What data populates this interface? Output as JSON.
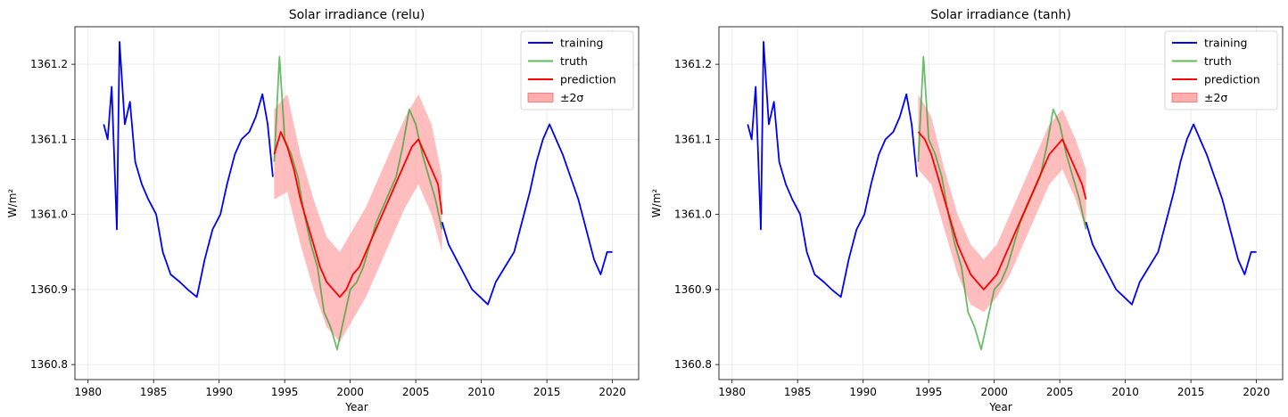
{
  "chart_data": [
    {
      "type": "line",
      "title": "Solar irradiance (relu)",
      "xlabel": "Year",
      "ylabel": "W/m²",
      "xlim": [
        1979,
        2022
      ],
      "ylim": [
        1360.78,
        1361.25
      ],
      "xticks": [
        1980,
        1985,
        1990,
        1995,
        2000,
        2005,
        2010,
        2015,
        2020
      ],
      "xtick_labels": [
        "1980",
        "1985",
        "1990",
        "1995",
        "2000",
        "2005",
        "2010",
        "2015",
        "2020"
      ],
      "yticks": [
        1360.8,
        1360.9,
        1361.0,
        1361.1,
        1361.2
      ],
      "ytick_labels": [
        "1360.8",
        "1360.9",
        "1361.0",
        "1361.1",
        "1361.2"
      ],
      "grid": true,
      "legend_position": "top-right",
      "legend": [
        "training",
        "truth",
        "prediction",
        "±2σ"
      ],
      "series": [
        {
          "name": "training",
          "color": "#0000ff",
          "x": [
            1981.2,
            1981.5,
            1981.8,
            1982.2,
            1982.4,
            1982.8,
            1983.2,
            1983.6,
            1984.1,
            1984.6,
            1985.2,
            1985.7,
            1986.3,
            1987.0,
            1987.6,
            1988.3,
            1988.9,
            1989.5,
            1990.1,
            1990.6,
            1991.2,
            1991.7,
            1992.3,
            1992.8,
            1993.3,
            1993.7,
            1994.1
          ],
          "y": [
            1361.12,
            1361.1,
            1361.17,
            1360.98,
            1361.23,
            1361.12,
            1361.15,
            1361.07,
            1361.04,
            1361.02,
            1361.0,
            1360.95,
            1360.92,
            1360.91,
            1360.9,
            1360.89,
            1360.94,
            1360.98,
            1361.0,
            1361.04,
            1361.08,
            1361.1,
            1361.11,
            1361.13,
            1361.16,
            1361.12,
            1361.05
          ]
        },
        {
          "name": "training",
          "color": "#0000ff",
          "x": [
            2007.0,
            2007.5,
            2008.1,
            2008.7,
            2009.3,
            2009.9,
            2010.5,
            2011.1,
            2011.8,
            2012.5,
            2013.1,
            2013.7,
            2014.2,
            2014.7,
            2015.2,
            2015.7,
            2016.2,
            2016.8,
            2017.4,
            2018.0,
            2018.6,
            2019.1,
            2019.6,
            2020.0
          ],
          "y": [
            1360.99,
            1360.96,
            1360.94,
            1360.92,
            1360.9,
            1360.89,
            1360.88,
            1360.91,
            1360.93,
            1360.95,
            1360.99,
            1361.03,
            1361.07,
            1361.1,
            1361.12,
            1361.1,
            1361.08,
            1361.05,
            1361.02,
            1360.98,
            1360.94,
            1360.92,
            1360.95,
            1360.95
          ]
        },
        {
          "name": "truth",
          "color": "#2ca02c",
          "x": [
            1994.2,
            1994.6,
            1995.0,
            1995.5,
            1996.0,
            1996.5,
            1997.0,
            1997.5,
            1998.0,
            1998.5,
            1999.0,
            1999.5,
            2000.0,
            2000.5,
            2001.0,
            2001.5,
            2002.0,
            2002.5,
            2003.0,
            2003.5,
            2004.0,
            2004.5,
            2005.0,
            2005.5,
            2006.0,
            2006.5,
            2007.0
          ],
          "y": [
            1361.07,
            1361.21,
            1361.1,
            1361.08,
            1361.05,
            1361.0,
            1360.96,
            1360.93,
            1360.87,
            1360.85,
            1360.82,
            1360.86,
            1360.9,
            1360.91,
            1360.93,
            1360.96,
            1360.99,
            1361.01,
            1361.03,
            1361.05,
            1361.09,
            1361.14,
            1361.12,
            1361.08,
            1361.05,
            1361.02,
            1360.98
          ]
        },
        {
          "name": "prediction",
          "color": "#ff0000",
          "x": [
            1994.2,
            1994.7,
            1995.2,
            1995.7,
            1996.2,
            1996.7,
            1997.2,
            1997.7,
            1998.2,
            1998.7,
            1999.2,
            1999.7,
            2000.2,
            2000.7,
            2001.2,
            2001.7,
            2002.2,
            2002.7,
            2003.2,
            2003.7,
            2004.2,
            2004.7,
            2005.2,
            2005.7,
            2006.2,
            2006.7,
            2007.0
          ],
          "y": [
            1361.08,
            1361.11,
            1361.09,
            1361.06,
            1361.02,
            1360.99,
            1360.96,
            1360.93,
            1360.91,
            1360.9,
            1360.89,
            1360.9,
            1360.92,
            1360.93,
            1360.95,
            1360.97,
            1360.99,
            1361.01,
            1361.03,
            1361.05,
            1361.07,
            1361.09,
            1361.1,
            1361.08,
            1361.06,
            1361.04,
            1361.0
          ]
        },
        {
          "name": "±2σ",
          "color": "#ff9999",
          "type": "band",
          "x": [
            1994.2,
            1995.2,
            1996.2,
            1997.2,
            1998.2,
            1999.2,
            2000.2,
            2001.2,
            2002.2,
            2003.2,
            2004.2,
            2005.2,
            2006.2,
            2007.0
          ],
          "lower": [
            1361.02,
            1361.03,
            1360.96,
            1360.9,
            1360.85,
            1360.83,
            1360.86,
            1360.89,
            1360.93,
            1360.97,
            1361.01,
            1361.04,
            1361.0,
            1360.95
          ],
          "upper": [
            1361.14,
            1361.16,
            1361.08,
            1361.02,
            1360.97,
            1360.95,
            1360.98,
            1361.01,
            1361.05,
            1361.09,
            1361.13,
            1361.16,
            1361.12,
            1361.05
          ]
        }
      ]
    },
    {
      "type": "line",
      "title": "Solar irradiance (tanh)",
      "xlabel": "Year",
      "ylabel": "W/m²",
      "xlim": [
        1979,
        2022
      ],
      "ylim": [
        1360.78,
        1361.25
      ],
      "xticks": [
        1980,
        1985,
        1990,
        1995,
        2000,
        2005,
        2010,
        2015,
        2020
      ],
      "xtick_labels": [
        "1980",
        "1985",
        "1990",
        "1995",
        "2000",
        "2005",
        "2010",
        "2015",
        "2020"
      ],
      "yticks": [
        1360.8,
        1360.9,
        1361.0,
        1361.1,
        1361.2
      ],
      "ytick_labels": [
        "1360.8",
        "1360.9",
        "1361.0",
        "1361.1",
        "1361.2"
      ],
      "grid": true,
      "legend_position": "top-right",
      "legend": [
        "training",
        "truth",
        "prediction",
        "±2σ"
      ],
      "series": [
        {
          "name": "training",
          "color": "#0000ff",
          "x": [
            1981.2,
            1981.5,
            1981.8,
            1982.2,
            1982.4,
            1982.8,
            1983.2,
            1983.6,
            1984.1,
            1984.6,
            1985.2,
            1985.7,
            1986.3,
            1987.0,
            1987.6,
            1988.3,
            1988.9,
            1989.5,
            1990.1,
            1990.6,
            1991.2,
            1991.7,
            1992.3,
            1992.8,
            1993.3,
            1993.7,
            1994.1
          ],
          "y": [
            1361.12,
            1361.1,
            1361.17,
            1360.98,
            1361.23,
            1361.12,
            1361.15,
            1361.07,
            1361.04,
            1361.02,
            1361.0,
            1360.95,
            1360.92,
            1360.91,
            1360.9,
            1360.89,
            1360.94,
            1360.98,
            1361.0,
            1361.04,
            1361.08,
            1361.1,
            1361.11,
            1361.13,
            1361.16,
            1361.12,
            1361.05
          ]
        },
        {
          "name": "training",
          "color": "#0000ff",
          "x": [
            2007.0,
            2007.5,
            2008.1,
            2008.7,
            2009.3,
            2009.9,
            2010.5,
            2011.1,
            2011.8,
            2012.5,
            2013.1,
            2013.7,
            2014.2,
            2014.7,
            2015.2,
            2015.7,
            2016.2,
            2016.8,
            2017.4,
            2018.0,
            2018.6,
            2019.1,
            2019.6,
            2020.0
          ],
          "y": [
            1360.99,
            1360.96,
            1360.94,
            1360.92,
            1360.9,
            1360.89,
            1360.88,
            1360.91,
            1360.93,
            1360.95,
            1360.99,
            1361.03,
            1361.07,
            1361.1,
            1361.12,
            1361.1,
            1361.08,
            1361.05,
            1361.02,
            1360.98,
            1360.94,
            1360.92,
            1360.95,
            1360.95
          ]
        },
        {
          "name": "truth",
          "color": "#2ca02c",
          "x": [
            1994.2,
            1994.6,
            1995.0,
            1995.5,
            1996.0,
            1996.5,
            1997.0,
            1997.5,
            1998.0,
            1998.5,
            1999.0,
            1999.5,
            2000.0,
            2000.5,
            2001.0,
            2001.5,
            2002.0,
            2002.5,
            2003.0,
            2003.5,
            2004.0,
            2004.5,
            2005.0,
            2005.5,
            2006.0,
            2006.5,
            2007.0
          ],
          "y": [
            1361.07,
            1361.21,
            1361.1,
            1361.08,
            1361.05,
            1361.0,
            1360.96,
            1360.93,
            1360.87,
            1360.85,
            1360.82,
            1360.86,
            1360.9,
            1360.91,
            1360.93,
            1360.96,
            1360.99,
            1361.01,
            1361.03,
            1361.05,
            1361.09,
            1361.14,
            1361.12,
            1361.08,
            1361.05,
            1361.02,
            1360.98
          ]
        },
        {
          "name": "prediction",
          "color": "#ff0000",
          "x": [
            1994.2,
            1994.7,
            1995.2,
            1995.7,
            1996.2,
            1996.7,
            1997.2,
            1997.7,
            1998.2,
            1998.7,
            1999.2,
            1999.7,
            2000.2,
            2000.7,
            2001.2,
            2001.7,
            2002.2,
            2002.7,
            2003.2,
            2003.7,
            2004.2,
            2004.7,
            2005.2,
            2005.7,
            2006.2,
            2006.7,
            2007.0
          ],
          "y": [
            1361.11,
            1361.1,
            1361.08,
            1361.05,
            1361.02,
            1360.99,
            1360.96,
            1360.94,
            1360.92,
            1360.91,
            1360.9,
            1360.91,
            1360.92,
            1360.94,
            1360.96,
            1360.98,
            1361.0,
            1361.02,
            1361.04,
            1361.06,
            1361.08,
            1361.09,
            1361.1,
            1361.08,
            1361.06,
            1361.04,
            1361.02
          ]
        },
        {
          "name": "±2σ",
          "color": "#ff9999",
          "type": "band",
          "x": [
            1994.2,
            1995.2,
            1996.2,
            1997.2,
            1998.2,
            1999.2,
            2000.2,
            2001.2,
            2002.2,
            2003.2,
            2004.2,
            2005.2,
            2006.2,
            2007.0
          ],
          "lower": [
            1361.06,
            1361.04,
            1360.98,
            1360.92,
            1360.88,
            1360.87,
            1360.89,
            1360.92,
            1360.96,
            1361.0,
            1361.04,
            1361.06,
            1361.02,
            1360.98
          ],
          "upper": [
            1361.16,
            1361.13,
            1361.06,
            1361.0,
            1360.96,
            1360.94,
            1360.96,
            1361.0,
            1361.04,
            1361.08,
            1361.12,
            1361.14,
            1361.1,
            1361.06
          ]
        }
      ]
    }
  ]
}
